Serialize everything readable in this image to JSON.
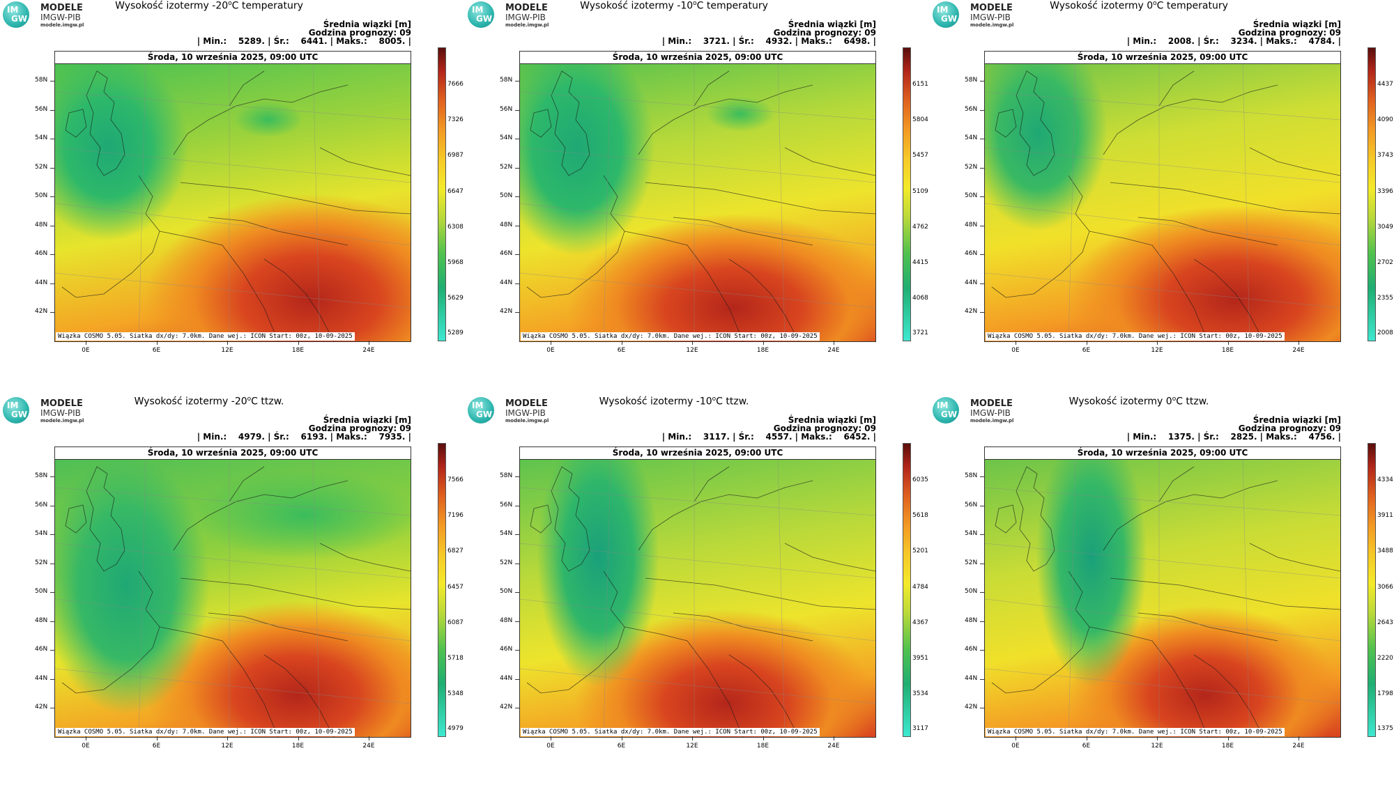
{
  "logo": {
    "line1": "MODELE",
    "line2": "IMGW-PIB",
    "line3": "modele.imgw.pl",
    "badge_top": "IM",
    "badge_bottom": "GW"
  },
  "panels": [
    {
      "title_prefix": "Wysokość izotermy -20",
      "title_suffix": "C temperatury",
      "info1": "Średnia wiązki [m]",
      "info2": "Godzina prognozy: 09",
      "info3": "| Min.:    5289. | Śr.:    6441. | Maks.:    8005. |",
      "header": "Środa, 10 września 2025, 09:00 UTC",
      "footer": "Wiązka COSMO 5.05. Siatka dx/dy: 7.0km. Dane wej.: ICON Start: 00z, 10-09-2025",
      "colorbar": [
        "7666",
        "7326",
        "6987",
        "6647",
        "6308",
        "5968",
        "5629",
        "5289"
      ]
    },
    {
      "title_prefix": "Wysokość izotermy -10",
      "title_suffix": "C temperatury",
      "info1": "Średnia wiązki [m]",
      "info2": "Godzina prognozy: 09",
      "info3": "| Min.:    3721. | Śr.:    4932. | Maks.:    6498. |",
      "header": "Środa, 10 września 2025, 09:00 UTC",
      "footer": "Wiązka COSMO 5.05. Siatka dx/dy: 7.0km. Dane wej.: ICON Start: 00z, 10-09-2025",
      "colorbar": [
        "6151",
        "5804",
        "5457",
        "5109",
        "4762",
        "4415",
        "4068",
        "3721"
      ]
    },
    {
      "title_prefix": "Wysokość izotermy 0",
      "title_suffix": "C temperatury",
      "info1": "Średnia wiązki [m]",
      "info2": "Godzina prognozy: 09",
      "info3": "| Min.:    2008. | Śr.:    3234. | Maks.:    4784. |",
      "header": "Środa, 10 września 2025, 09:00 UTC",
      "footer": "Wiązka COSMO 5.05. Siatka dx/dy: 7.0km. Dane wej.: ICON Start: 00z, 10-09-2025",
      "colorbar": [
        "4437",
        "4090",
        "3743",
        "3396",
        "3049",
        "2702",
        "2355",
        "2008"
      ]
    },
    {
      "title_prefix": "Wysokość izotermy -20",
      "title_suffix": "C ttzw.",
      "info1": "Średnia wiązki [m]",
      "info2": "Godzina prognozy: 09",
      "info3": "| Min.:    4979. | Śr.:    6193. | Maks.:    7935. |",
      "header": "Środa, 10 września 2025, 09:00 UTC",
      "footer": "Wiązka COSMO 5.05. Siatka dx/dy: 7.0km. Dane wej.: ICON Start: 00z, 10-09-2025",
      "colorbar": [
        "7566",
        "7196",
        "6827",
        "6457",
        "6087",
        "5718",
        "5348",
        "4979"
      ]
    },
    {
      "title_prefix": "Wysokość izotermy -10",
      "title_suffix": "C ttzw.",
      "info1": "Średnia wiązki [m]",
      "info2": "Godzina prognozy: 09",
      "info3": "| Min.:    3117. | Śr.:    4557. | Maks.:    6452. |",
      "header": "Środa, 10 września 2025, 09:00 UTC",
      "footer": "Wiązka COSMO 5.05. Siatka dx/dy: 7.0km. Dane wej.: ICON Start: 00z, 10-09-2025",
      "colorbar": [
        "6035",
        "5618",
        "5201",
        "4784",
        "4367",
        "3951",
        "3534",
        "3117"
      ]
    },
    {
      "title_prefix": "Wysokość izotermy 0",
      "title_suffix": "C ttzw.",
      "info1": "Średnia wiązki [m]",
      "info2": "Godzina prognozy: 09",
      "info3": "| Min.:    1375. | Śr.:    2825. | Maks.:    4756. |",
      "header": "Środa, 10 września 2025, 09:00 UTC",
      "footer": "Wiązka COSMO 5.05. Siatka dx/dy: 7.0km. Dane wej.: ICON Start: 00z, 10-09-2025",
      "colorbar": [
        "4334",
        "3911",
        "3488",
        "3066",
        "2643",
        "2220",
        "1798",
        "1375"
      ]
    }
  ],
  "title_degree": "o",
  "lat_labels": [
    "58N",
    "56N",
    "54N",
    "52N",
    "50N",
    "48N",
    "46N",
    "44N",
    "42N"
  ],
  "lon_labels": [
    "0E",
    "6E",
    "12E",
    "18E",
    "24E"
  ],
  "colors": {
    "low": "#1fae72",
    "mid": "#f3ea2a",
    "high": "#c8321e",
    "cbar_bottom": "#3ee8d0",
    "cbar_top": "#5a0e0c"
  }
}
